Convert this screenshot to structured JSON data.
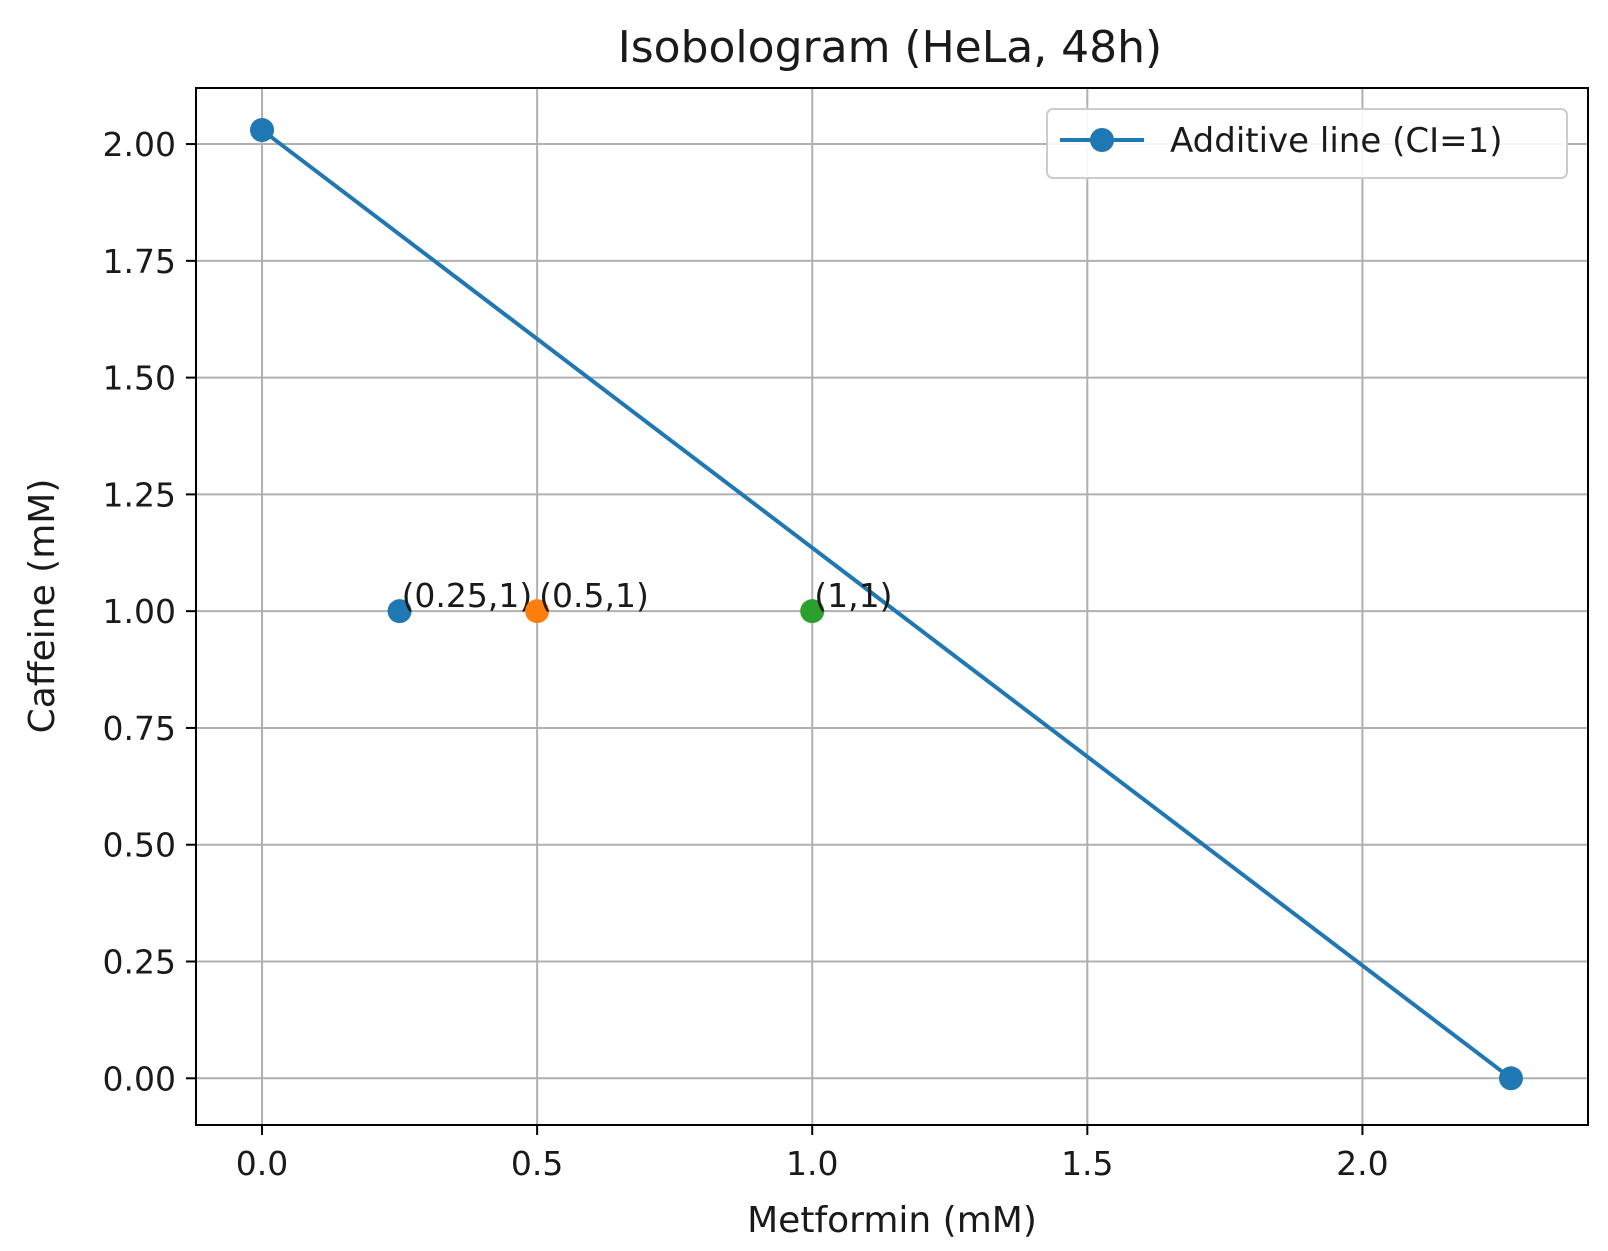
{
  "chart_data": {
    "type": "line",
    "title": "Isobologram (HeLa, 48h)",
    "xlabel": "Metformin (mM)",
    "ylabel": "Caffeine (mM)",
    "xlim": [
      -0.12,
      2.41
    ],
    "ylim": [
      -0.1,
      2.12
    ],
    "grid": true,
    "legend_position": "top-right",
    "x_ticks": [
      0.0,
      0.5,
      1.0,
      1.5,
      2.0
    ],
    "x_tick_labels": [
      "0.0",
      "0.5",
      "1.0",
      "1.5",
      "2.0"
    ],
    "y_ticks": [
      0.0,
      0.25,
      0.5,
      0.75,
      1.0,
      1.25,
      1.5,
      1.75,
      2.0
    ],
    "y_tick_labels": [
      "0.00",
      "0.25",
      "0.50",
      "0.75",
      "1.00",
      "1.25",
      "1.50",
      "1.75",
      "2.00"
    ],
    "series": [
      {
        "name": "Additive line (CI=1)",
        "color": "#1f77b4",
        "x": [
          0.0,
          2.27
        ],
        "y": [
          2.03,
          0.0
        ]
      }
    ],
    "points": [
      {
        "x": 0.25,
        "y": 1.0,
        "label": "(0.25,1)",
        "color": "#1f77b4"
      },
      {
        "x": 0.5,
        "y": 1.0,
        "label": "(0.5,1)",
        "color": "#ff7f0e"
      },
      {
        "x": 1.0,
        "y": 1.0,
        "label": "(1,1)",
        "color": "#2ca02c"
      }
    ]
  }
}
